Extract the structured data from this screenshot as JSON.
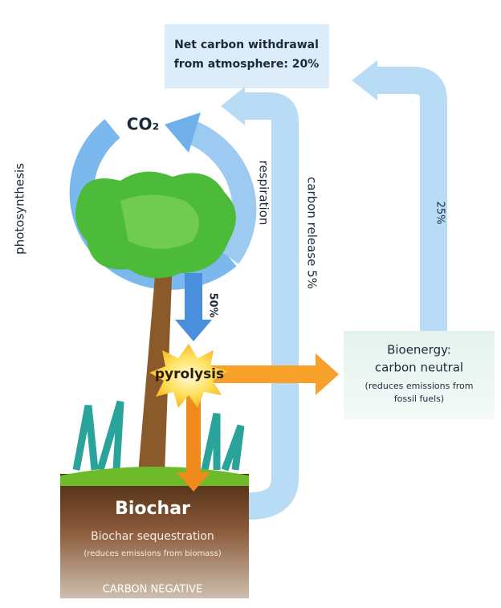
{
  "atmosphere_box": {
    "lines": [
      "Net carbon withdrawal",
      "from atmosphere: 20%"
    ]
  },
  "co2_label": "CO₂",
  "photosynthesis_label": "photosynthesis",
  "respiration_label": "respiration",
  "carbon_release_label": "carbon release 5%",
  "bioenergy_return_label": "25%",
  "biomass_label": "50%",
  "pyrolysis_label": "pyrolysis",
  "bioenergy_box": {
    "title_lines": [
      "Bioenergy:",
      "carbon neutral"
    ],
    "note_lines": [
      "(reduces emissions from",
      "fossil fuels)"
    ]
  },
  "biochar_block": {
    "title": "Biochar",
    "subtitle": "Biochar sequestration",
    "note": "(reduces emissions from biomass)",
    "footer": "CARBON NEGATIVE"
  }
}
